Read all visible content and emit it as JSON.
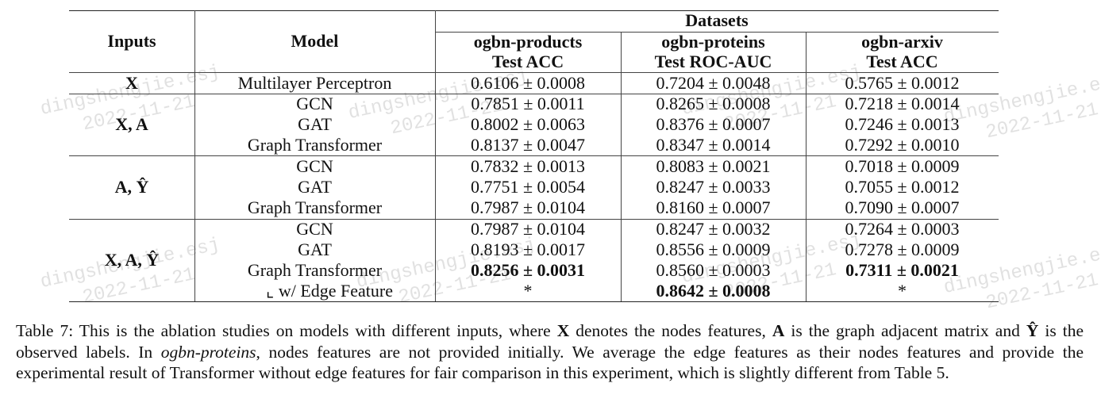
{
  "table": {
    "header": {
      "inputs": "Inputs",
      "model": "Model",
      "datasets": "Datasets",
      "columns": [
        {
          "name": "ogbn-products",
          "metric": "Test ACC"
        },
        {
          "name": "ogbn-proteins",
          "metric": "Test ROC-AUC"
        },
        {
          "name": "ogbn-arxiv",
          "metric": "Test ACC"
        }
      ]
    },
    "groups": [
      {
        "inputs": "X",
        "rows": [
          {
            "model": "Multilayer Perceptron",
            "values": [
              "0.6106 ± 0.0008",
              "0.7204 ± 0.0048",
              "0.5765 ± 0.0012"
            ]
          }
        ]
      },
      {
        "inputs": "X, A",
        "rows": [
          {
            "model": "GCN",
            "values": [
              "0.7851 ± 0.0011",
              "0.8265 ± 0.0008",
              "0.7218 ± 0.0014"
            ]
          },
          {
            "model": "GAT",
            "values": [
              "0.8002 ± 0.0063",
              "0.8376 ± 0.0007",
              "0.7246 ± 0.0013"
            ]
          },
          {
            "model": "Graph Transformer",
            "values": [
              "0.8137 ± 0.0047",
              "0.8347 ± 0.0014",
              "0.7292 ± 0.0010"
            ]
          }
        ]
      },
      {
        "inputs": "A, Ŷ",
        "rows": [
          {
            "model": "GCN",
            "values": [
              "0.7832 ± 0.0013",
              "0.8083 ± 0.0021",
              "0.7018 ± 0.0009"
            ]
          },
          {
            "model": "GAT",
            "values": [
              "0.7751 ± 0.0054",
              "0.8247 ± 0.0033",
              "0.7055 ± 0.0012"
            ]
          },
          {
            "model": "Graph Transformer",
            "values": [
              "0.7987 ± 0.0104",
              "0.8160 ± 0.0007",
              "0.7090 ± 0.0007"
            ]
          }
        ]
      },
      {
        "inputs": "X, A, Ŷ",
        "rows": [
          {
            "model": "GCN",
            "values": [
              "0.7987 ± 0.0104",
              "0.8247 ± 0.0032",
              "0.7264 ± 0.0003"
            ]
          },
          {
            "model": "GAT",
            "values": [
              "0.8193 ± 0.0017",
              "0.8556 ± 0.0009",
              "0.7278 ± 0.0009"
            ]
          },
          {
            "model": "Graph Transformer",
            "values": [
              "0.8256 ± 0.0031",
              "0.8560 ± 0.0003",
              "0.7311 ±  0.0021"
            ]
          },
          {
            "model": "⌞ w/ Edge Feature",
            "values": [
              "*",
              "0.8642 ± 0.0008",
              "*"
            ]
          }
        ]
      }
    ]
  },
  "caption": {
    "p1": "Table 7: This is the ablation studies on models with different inputs, where ",
    "x": "X",
    "p2": " denotes the nodes features, ",
    "a": "A",
    "p3": " is the graph adjacent matrix and",
    "y": "Ŷ",
    "p4": " is the observed labels. In ",
    "dataset": "ogbn-proteins",
    "p5": ", nodes features are not provided initially. We average the edge features as their nodes features and provide the experimental result of Transformer without edge features for fair comparison in this experiment, which is slightly different from Table 5."
  },
  "watermark": {
    "name": "dingshengjie.esj",
    "date": "2022-11-21"
  }
}
